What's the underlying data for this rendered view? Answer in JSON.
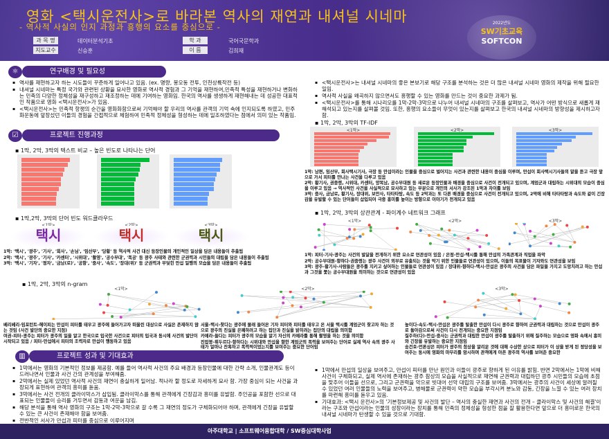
{
  "header": {
    "title": "영화 <택시운전사>로 바라본 역사의 재연과 내셔널 시네마",
    "subtitle": "- 역사적 사실의 인지 과정과 흥행의 요소를 중심으로 -",
    "info": [
      {
        "label": "과 목 명",
        "value": "데이터분석기초"
      },
      {
        "label": "학 과",
        "value": "국어국문학과"
      },
      {
        "label": "지도교수",
        "value": "신승훈"
      },
      {
        "label": "이 름",
        "value": "김희재"
      }
    ],
    "logo": {
      "year": "2022년도",
      "line1": "SW기초교육",
      "line2": "SOFTCON"
    }
  },
  "sections": {
    "s1": "연구배경 및 필요성",
    "s2": "프로젝트 진행과정",
    "s3": "프로젝트 성과 및 기대효과"
  },
  "background_left": [
    "역사를 재현하고자 하는 시도들이 꾸준하게 일어나고 있음. (ex. 명량, 봉오동 전투, 인천상륙작전 등)",
    "내셔널 시네마는 특정 국가와 관련된 상황을 묘사한 영화로 역사적 경험과 그 기억을 재현하여,민족적 특성을 재현하거나 변화하는 민족의 다양한 정체성을 재구성하고 재조정하는 데에 기여하는 영화임. 한국의 역사를 생생하게 재현해내는 데 성공한 대표적인 작품으로 영화 <택시운전사>가 있음.",
    "<택시운전사>는 민족적 항쟁의 순간을 영화화함으로써 기억해야 할 우리의 역사를 관객의 기억 속에 인지되도록 하였고, 민주화운동에 앞장섰던 이들의 경험을 간접적으로 체험하여 민족적 정체성을 형성하는 데에 일조하였다는 점에서 의미 있는 작품임."
  ],
  "background_right": [
    "<택시운전사>는 내셔널 시네마의 좋은 본보기로 해당 구조를 분석하는 것은 더 많은 내셔널 시네마 영화의 제작을 위해 필요한 일임.",
    "역사적 사실을 왜곡하지 않으면서도 흥행할 수 있는 영화를 만드는 것이 중요한 과제가 됨.",
    "<택시운전사>를 통해 시나리오를 1막-2막-3막으로 나누어 내셔널 시네마의 구조를 살펴보고, 역사가 어떤 방식으로 새롭게 재해석되고 있는지를 살펴볼 것임. 또한, 흥행의 요소들이 무엇이 있는지를 살펴보고 한국의 내셔널 시네마의 방향성을 제시하고자 함."
  ],
  "process": {
    "freq_bullet": "1막, 2막, 3막의 텍스트 비교 – 높은 빈도로 나타나는 단어",
    "cloud_bullet": "1막,2막, 3막의 단어 빈도 워드클라우드",
    "clouds": [
      {
        "title": "<1막>",
        "word": "택시",
        "color": "#7a2aa0"
      },
      {
        "title": "<2막>",
        "word": "택시",
        "color": "#c0302a"
      },
      {
        "title": "<3막>",
        "word": "택시",
        "color": "#4a5a10"
      }
    ],
    "cloud_captions": [
      "1막: '택시', '광주', '기사', '회사', '손님', '임산부', '당황' 등 역사적 사건 대신 등장인물의 개인적인 일상을 담은 내용들이 추출됨",
      "2막: '택시', '광주', '기사', '카센터', '시위대', '촬영', '공수부대', '폭공' 등 광주 사태와 관련한 군권력과 시민들의 대립을 담은 내용들이 추출됨",
      "3막: '택시', '기자', '정자', '금남(로)', '공항', '중사', '속도', '장대(위)' 등 군권력과 부딪힌 만섭 일행의 모습을 담은 내용들이 추출됨"
    ],
    "tfidf_bullet": "1막, 2막, 3막의 TF-IDF",
    "tfidf_captions": [
      "1막: 남편, 임산부, 회사택시기사, 극장 등 만섭이라는 인물을 중심으로 벌어지는 사건과 관련한 내용이 중심을 이루며, 만섭이 회사택시기사들의 말을 듣고 극장 앞으로 가서 피터를 만나는 사건을 다루고 있음",
      "2막: 황기사, 권중령, 시위대, 카센터, 양복남, 공수부대원 등 새로운 등장인물과 배경을 중심으로 사건이 전개되고 있으며, 계엄군과 대립하는 시위대의 모습이 중심을 이루고 있음 → 역사적인 사건을 사실적으로 묘사하고 있는 부분으로 개인의 서사가 강조된 1막과 차이를 보임",
      "3막: 중사, 금남로, 황기사, 장대위, 보안사, 타타타탕, 속도 등 2막과는 또 다른 배경을 중심으로 사건이 전개되고 있으며, 2막에 비해 타타타탕과 속도와 같이 긴장감을 유발할 수 있는 단어들이 삽입되어 극중 흥미를 높이는 방향으로 이야기가 전개되고 있음"
    ],
    "network_bullet": "1막, 2막, 3막의 상관관계 - 파이계수 네트워크 그래프",
    "network_titles": [
      "<1막>",
      "<2막>",
      "<3막>"
    ],
    "network_captions": [
      "1막: 피터-기사-광주는 사건의 발달을 전개하기 위한 요소로 연관성이 있음 / 은정-만섭-택시를 통해 만섭의 가족관계과 직업을 파악",
      "2막: 공수부대원-향하다-권중령는 광주 사건이 외부로 유출되는 것을 막기 위한 인물들로 연관성이 있으며, 이들의 목표물이 기자와도 연관성을 보임",
      "3막: 광주-황기사-사람들은 광주를 지키고 싶어하는 인물들로 연관성이 있음 / 장대위-향하다-택시-만섭은 광주의 사건을 담은 파일을 가지고 도망치려고 하는 만섭과 그것을 쫓는 공수부대원을 의미하는 것으로 연관성이 있음"
    ],
    "ngram_bullet": "1막, 2막, 3막의 n-gram",
    "ngram_titles": [
      "<1막>",
      "<2막>",
      "<3막>"
    ],
    "ngram_captions": [
      [
        "베리베리-임포턴트-헤이피는 만섭이 피터를 태우고 광주에 들어가고자 떠올린 대상으로 사실은 존재하지 않는 것임 (사건 발단의 중요한 지점)",
        "여권-피터-광주는 피터가 광주의 일을 알고 한국으로 입국한 사건으로 피터의 입국과 동시에 사건의 발단이 시작되고 있음 / 피터-만섭에서 피터의 조력자로 만섭이 행동하고 있음"
      ],
      [
        "서울-택시-찾다는 광주에 몰래 들어온 기자 피터와 피터를 태우고 온 서울 택시를 계엄군이 찾고자 하는 것으로 광주의 진실을 은폐하려고 하는 집단과 진실을 밝히려는 집단의 대립을 의미함",
        "카메라-들다는 피터가 광주의 모습을 알기 자신의 카메라를 통해 촬영을 하는 것을 의미함",
        "진압봉-휘두르다-향하다는 시위대와 만섭을 향한 계엄군의 폭력을 보여주는 단어로 실제 역사 속의 광주 사태가 얼마나 잔혹하고 폭력적이었는지를 보여주는 중요한 단어임"
      ],
      [
        "높이다-속도-택시-만섭은 광주를 탈출한 만섭이 다시 광주로 향하여 군권력과 대립하는 것으로 만섭이 광주로 돌아감으로써 사건이 다시 전개되는 중요한 지점임",
        "질주하(다)-만섭-중사는 군권력과 대립한 만섭이 광주를 탈출하기 위해 질주하는 모습으로 영화 속에서 흥미와 긴장을 유발하는 중요한 지점임",
        "송건호-언론상은 피터가 광주의 참상을 알리운 것에 대해 수상한 상으로 피터가 이 상을 받게 된 정당성을 보여주는 동시에 영화의 마무리를 암시하며 관객에게 아픈 광주의 역사를 보여준 중요한"
      ]
    ]
  },
  "results_left": [
    "1막에서는 영화의 기본적인 정보를 제공함. 예를 들어 역사적 사건의 주요 배경과 등장인물에 대한 간략 소개, 인물관계도 등이 드러나면서 인물과 사건 간의 관계성을 부여해줌.",
    "2막에서는 실제 있었던 역사적 사건의 재연이 충실하게 일어남. 적나라 할 정도로 자세하게 묘사 함. 가장 중심이 되는 사건을 과장되게 표현하여 관객의 흥미를 돋움.",
    "3막에서는 사건 전개의 클라이막스가 삽입됨. 클라이막스를 통해 관객에게 긴장감과 흥미를 유발함. 주인공을 포함한 선으로 대표되는 인물들이 승리를 거두면서 감동과 여운을 남김.",
    "해당 분석을 통해 역사 영화의 구조는 1막-2막-3막으로 갈 수록 그 재연의 정도가 구체화되어야 하며, 관객에게 긴장을 유발할 수 있는 큰 사건이 존재해야 함을 보여줌.",
    "전반적인 서사가 만섭과 피터를 중심으로 이루어지며"
  ],
  "results_right": [
    "1막에서 만섭의 일상을 보여주고, 만섭이 피터를 만난 원인과 이들이 광주로 향하게 된 이유를 밝힘. 반면 2막에서는 1막에 비해 사건이 구체화되고, 실제 역사에 존재하는 광주 참상의 모습을 사실적으로 재연해 군권력과 대립하던 광주 시민들의 모습에 초점을 맞추어 이들을 선으로, 그리고 군권력을 악으로 빗대어 선악 대립의 구조를 보여줌. 3막에서는 광주의 사건이 세상에 알려질 수 있었던 여러 인물들의 노력을 보여주고, 병해물로 군권력이 약한 모습을 부각시켜 분노와 감동, 긴장을 느낄 수 있는 여러 장치를 마련해 흥미를 돋우고 있음.",
    "기대효과: <택시 운전사>의 '기본정보제공 및 사건의 발단 – 역사의 충실한 재연과 사건의 전개 – 클라이막스 및 사건의 해결'이라는 구조와 만섭이라는 인물의 성장이라는 장치를 통해 민족의 정체성을 형성한 점을 잘 활용한다면 앞으로 더 흥미로운 한국의 내셔널 시네마가 탄생할 수 있을 것으로 기대함."
  ],
  "footer": "아주대학교  |  소프트웨어융합대학 / SW중심대학사업",
  "figures": {
    "freq_charts": [
      {
        "color": "#f8766d",
        "values": [
          92,
          88,
          82,
          80,
          75,
          75,
          72,
          68,
          66,
          66
        ]
      },
      {
        "color": "#00ba38",
        "values": [
          230,
          190,
          185,
          180,
          165,
          160,
          160,
          160,
          160,
          160
        ]
      },
      {
        "color": "#619cff",
        "values": [
          130,
          125,
          125,
          115,
          112,
          108,
          108,
          95,
          92,
          92
        ]
      }
    ],
    "tfidf_charts": [
      {
        "title": "<1막>",
        "color": "#f8766d",
        "values": [
          1,
          0.98,
          0.82,
          0.7,
          0.65,
          0.6,
          0.58,
          0.58,
          0.58,
          0.58
        ]
      },
      {
        "title": "<2막>",
        "color": "#00ba38",
        "values": [
          1,
          0.72,
          0.64,
          0.64,
          0.6,
          0.6,
          0.45,
          0.45,
          0.45,
          0.45
        ]
      },
      {
        "title": "<3막>",
        "color": "#619cff",
        "values": [
          1,
          0.78,
          0.73,
          0.6,
          0.54,
          0.5,
          0.4,
          0.4,
          0.4,
          0.4
        ]
      }
    ]
  }
}
